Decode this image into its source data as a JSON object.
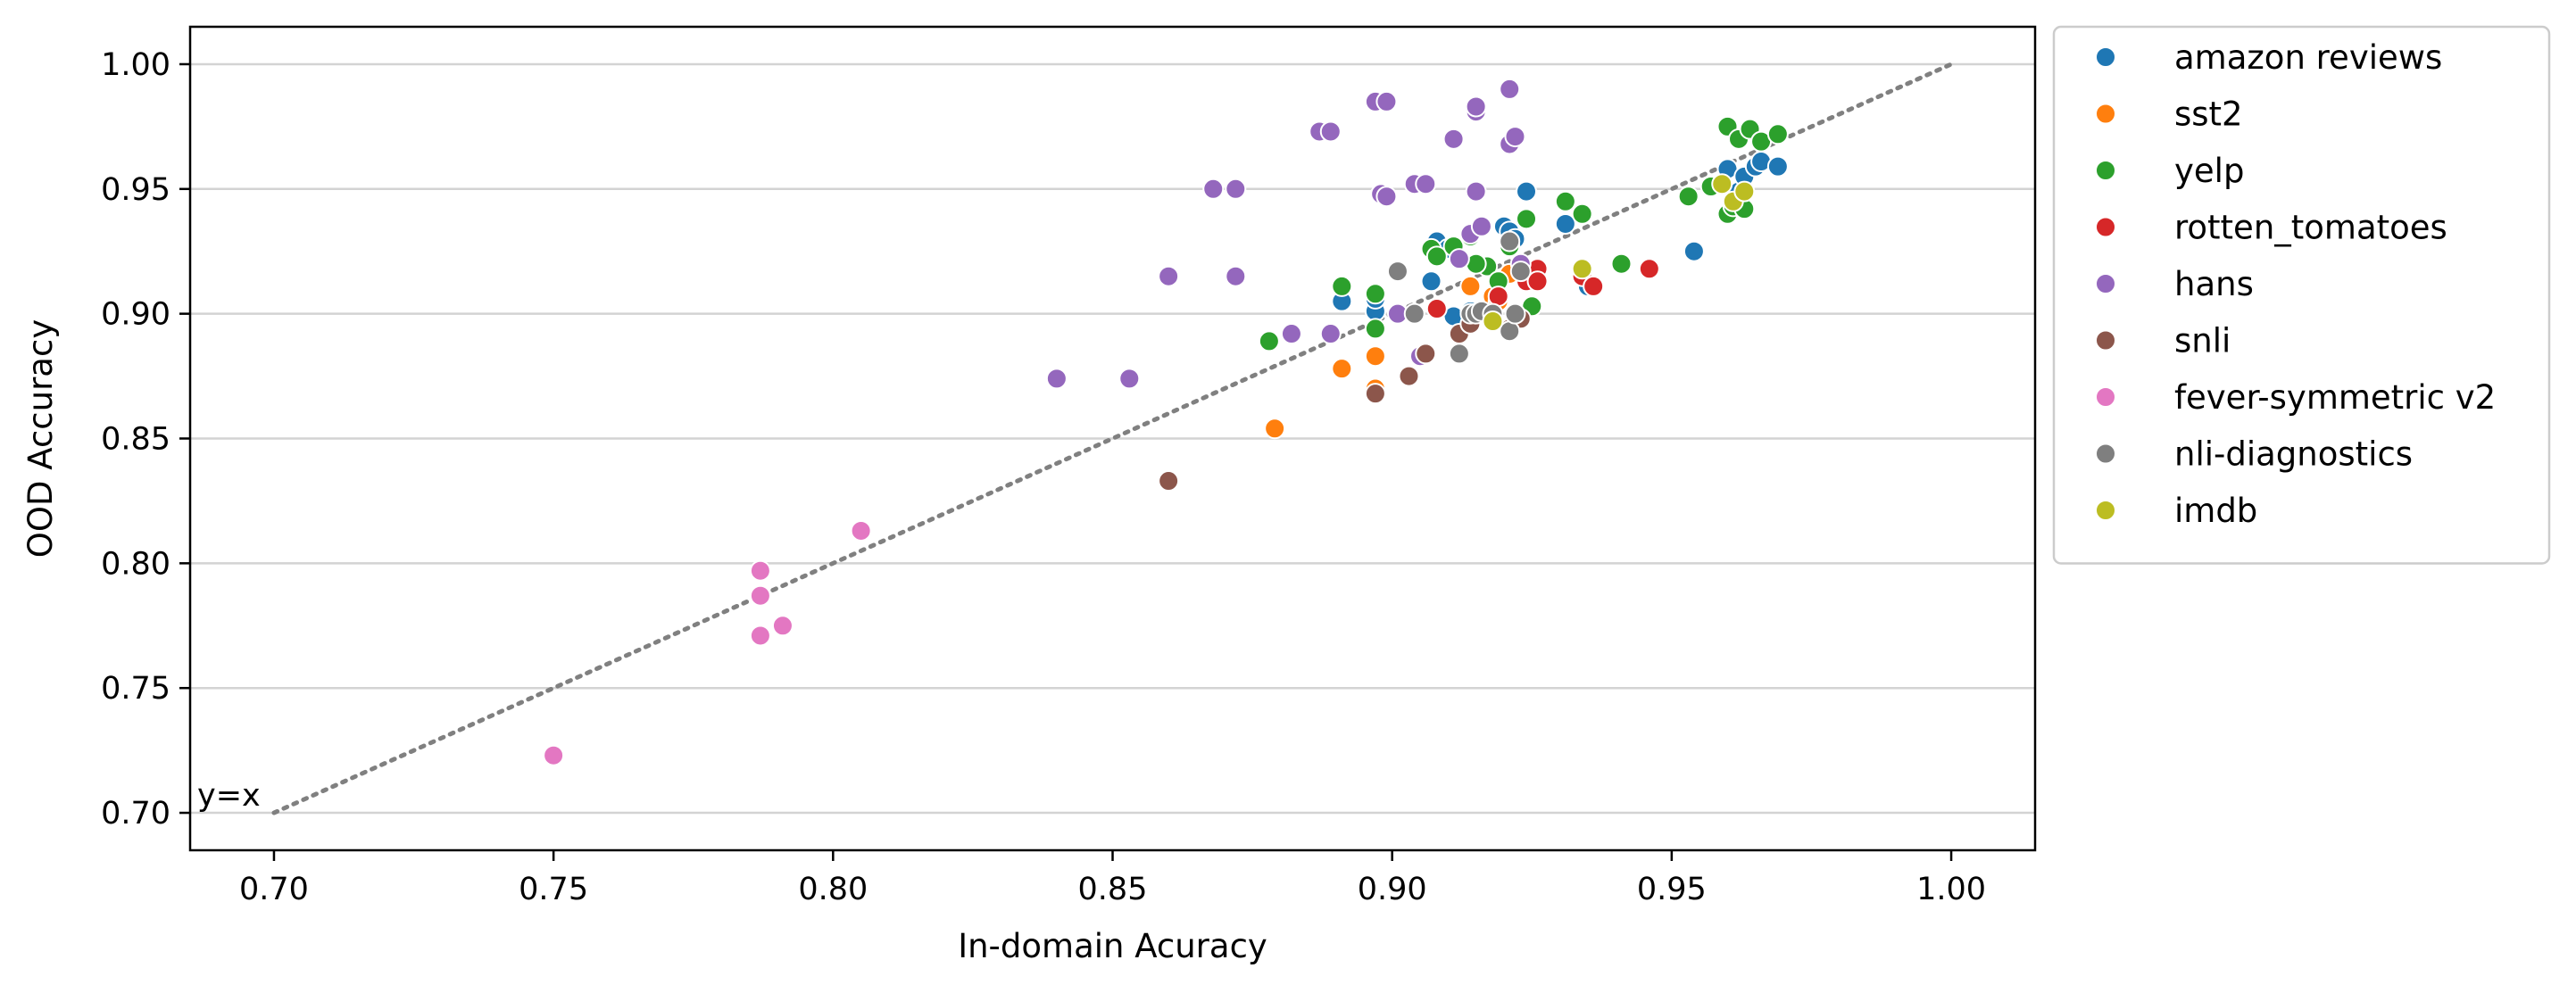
{
  "chart_data": {
    "type": "scatter",
    "title": "",
    "xlabel": "In-domain Acuracy",
    "ylabel": "OOD Accuracy",
    "xlim": [
      0.685,
      1.015
    ],
    "ylim": [
      0.685,
      1.015
    ],
    "xticks": [
      "0.70",
      "0.75",
      "0.80",
      "0.85",
      "0.90",
      "0.95",
      "1.00"
    ],
    "yticks": [
      "0.70",
      "0.75",
      "0.80",
      "0.85",
      "0.90",
      "0.95",
      "1.00"
    ],
    "grid": "horizontal",
    "legend_position": "outside-top-right",
    "reference_line": {
      "label": "y=x",
      "from": [
        0.7,
        0.7
      ],
      "to": [
        1.0,
        1.0
      ],
      "color": "#808080",
      "style": "dotted"
    },
    "series": [
      {
        "name": "amazon reviews",
        "color": "#1f77b4",
        "points": [
          [
            0.891,
            0.905
          ],
          [
            0.897,
            0.901
          ],
          [
            0.897,
            0.906
          ],
          [
            0.907,
            0.913
          ],
          [
            0.908,
            0.929
          ],
          [
            0.91,
            0.926
          ],
          [
            0.911,
            0.899
          ],
          [
            0.914,
            0.901
          ],
          [
            0.917,
            0.9
          ],
          [
            0.92,
            0.935
          ],
          [
            0.921,
            0.933
          ],
          [
            0.922,
            0.93
          ],
          [
            0.924,
            0.949
          ],
          [
            0.931,
            0.936
          ],
          [
            0.935,
            0.911
          ],
          [
            0.954,
            0.925
          ],
          [
            0.96,
            0.958
          ],
          [
            0.962,
            0.949
          ],
          [
            0.963,
            0.955
          ],
          [
            0.965,
            0.959
          ],
          [
            0.966,
            0.961
          ],
          [
            0.969,
            0.959
          ]
        ]
      },
      {
        "name": "sst2",
        "color": "#ff7f0e",
        "points": [
          [
            0.879,
            0.854
          ],
          [
            0.891,
            0.878
          ],
          [
            0.897,
            0.883
          ],
          [
            0.897,
            0.87
          ],
          [
            0.914,
            0.911
          ],
          [
            0.918,
            0.907
          ],
          [
            0.919,
            0.905
          ],
          [
            0.921,
            0.916
          ]
        ]
      },
      {
        "name": "yelp",
        "color": "#2ca02c",
        "points": [
          [
            0.878,
            0.889
          ],
          [
            0.891,
            0.911
          ],
          [
            0.897,
            0.908
          ],
          [
            0.897,
            0.894
          ],
          [
            0.907,
            0.926
          ],
          [
            0.908,
            0.923
          ],
          [
            0.911,
            0.927
          ],
          [
            0.914,
            0.931
          ],
          [
            0.917,
            0.919
          ],
          [
            0.919,
            0.913
          ],
          [
            0.921,
            0.927
          ],
          [
            0.924,
            0.938
          ],
          [
            0.925,
            0.903
          ],
          [
            0.931,
            0.945
          ],
          [
            0.934,
            0.94
          ],
          [
            0.941,
            0.92
          ],
          [
            0.953,
            0.947
          ],
          [
            0.957,
            0.951
          ],
          [
            0.96,
            0.975
          ],
          [
            0.96,
            0.94
          ],
          [
            0.961,
            0.943
          ],
          [
            0.962,
            0.97
          ],
          [
            0.963,
            0.942
          ],
          [
            0.964,
            0.974
          ],
          [
            0.966,
            0.969
          ],
          [
            0.969,
            0.972
          ],
          [
            0.915,
            0.92
          ]
        ]
      },
      {
        "name": "rotten_tomatoes",
        "color": "#d62728",
        "points": [
          [
            0.908,
            0.902
          ],
          [
            0.919,
            0.907
          ],
          [
            0.924,
            0.913
          ],
          [
            0.926,
            0.918
          ],
          [
            0.926,
            0.913
          ],
          [
            0.934,
            0.915
          ],
          [
            0.936,
            0.911
          ],
          [
            0.946,
            0.918
          ]
        ]
      },
      {
        "name": "hans",
        "color": "#9467bd",
        "points": [
          [
            0.84,
            0.874
          ],
          [
            0.853,
            0.874
          ],
          [
            0.86,
            0.915
          ],
          [
            0.868,
            0.95
          ],
          [
            0.872,
            0.95
          ],
          [
            0.872,
            0.915
          ],
          [
            0.882,
            0.892
          ],
          [
            0.887,
            0.973
          ],
          [
            0.889,
            0.973
          ],
          [
            0.889,
            0.892
          ],
          [
            0.897,
            0.985
          ],
          [
            0.898,
            0.948
          ],
          [
            0.899,
            0.947
          ],
          [
            0.899,
            0.985
          ],
          [
            0.901,
            0.9
          ],
          [
            0.904,
            0.952
          ],
          [
            0.905,
            0.883
          ],
          [
            0.906,
            0.952
          ],
          [
            0.911,
            0.97
          ],
          [
            0.912,
            0.922
          ],
          [
            0.914,
            0.932
          ],
          [
            0.915,
            0.981
          ],
          [
            0.915,
            0.983
          ],
          [
            0.915,
            0.949
          ],
          [
            0.916,
            0.935
          ],
          [
            0.921,
            0.99
          ],
          [
            0.921,
            0.968
          ],
          [
            0.922,
            0.971
          ],
          [
            0.923,
            0.92
          ]
        ]
      },
      {
        "name": "snli",
        "color": "#8c564b",
        "points": [
          [
            0.86,
            0.833
          ],
          [
            0.897,
            0.868
          ],
          [
            0.903,
            0.875
          ],
          [
            0.906,
            0.884
          ],
          [
            0.912,
            0.892
          ],
          [
            0.914,
            0.896
          ],
          [
            0.921,
            0.894
          ],
          [
            0.923,
            0.898
          ]
        ]
      },
      {
        "name": "fever-symmetric v2",
        "color": "#e377c2",
        "points": [
          [
            0.75,
            0.723
          ],
          [
            0.787,
            0.797
          ],
          [
            0.787,
            0.787
          ],
          [
            0.787,
            0.771
          ],
          [
            0.791,
            0.775
          ],
          [
            0.805,
            0.813
          ]
        ]
      },
      {
        "name": "nli-diagnostics",
        "color": "#7f7f7f",
        "points": [
          [
            0.901,
            0.917
          ],
          [
            0.904,
            0.9
          ],
          [
            0.912,
            0.884
          ],
          [
            0.914,
            0.9
          ],
          [
            0.915,
            0.9
          ],
          [
            0.916,
            0.901
          ],
          [
            0.918,
            0.9
          ],
          [
            0.921,
            0.929
          ],
          [
            0.921,
            0.893
          ],
          [
            0.922,
            0.9
          ],
          [
            0.923,
            0.917
          ]
        ]
      },
      {
        "name": "imdb",
        "color": "#bcbd22",
        "points": [
          [
            0.918,
            0.897
          ],
          [
            0.934,
            0.918
          ],
          [
            0.959,
            0.952
          ],
          [
            0.961,
            0.945
          ],
          [
            0.963,
            0.949
          ]
        ]
      }
    ]
  }
}
